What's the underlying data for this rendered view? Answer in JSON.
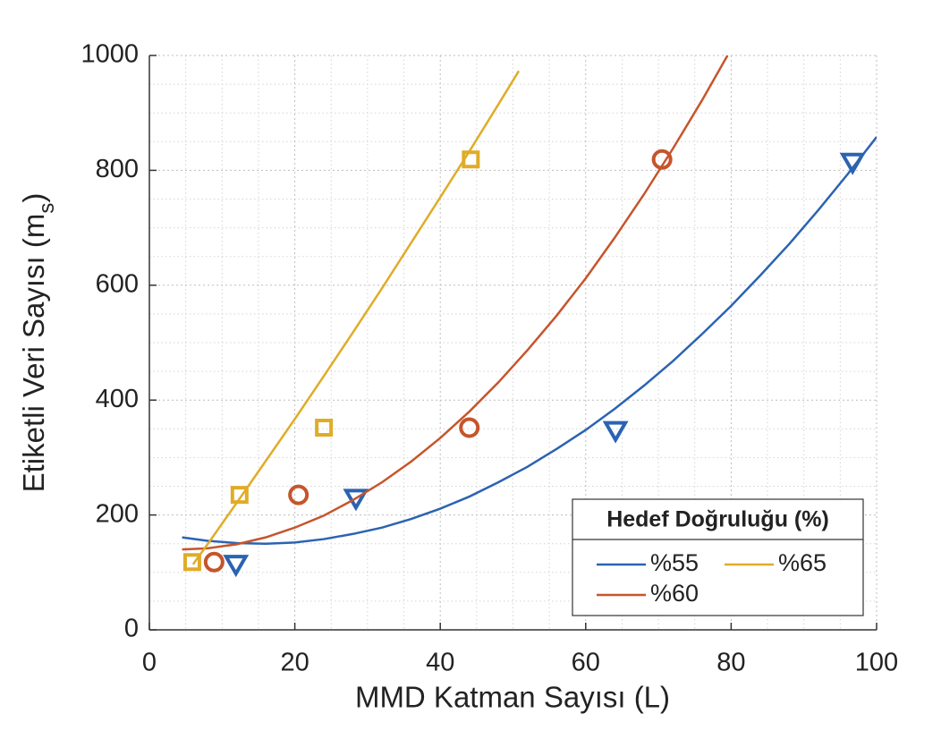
{
  "chart_data": {
    "type": "scatter",
    "x_label": "MMD Katman Sayısı (L)",
    "y_label": [
      "Etiketli Veri Sayısı (m",
      "s",
      ")"
    ],
    "xlim": [
      0,
      100
    ],
    "xticks": [
      0,
      20,
      40,
      60,
      80,
      100
    ],
    "ylim": [
      0,
      1000
    ],
    "yticks": [
      0,
      200,
      400,
      600,
      800,
      1000
    ],
    "grid": true,
    "minor_grid": true,
    "legend_title": "Hedef Doğruluğu (%)",
    "legend_position": "lower right",
    "series": [
      {
        "name": "%55",
        "color": "#2b63b2",
        "marker": "triangle-down",
        "points": {
          "x": [
            11.9,
            28.4,
            64.1,
            96.7
          ],
          "values": [
            115,
            230,
            348,
            815
          ]
        },
        "fit": {
          "x": [
            4.5,
            8,
            12,
            16,
            20,
            24,
            28,
            32,
            36,
            40,
            44,
            48,
            52,
            56,
            60,
            64,
            68,
            72,
            76,
            80,
            84,
            88,
            92,
            96,
            100
          ],
          "values": [
            161,
            155,
            151,
            150,
            152,
            158,
            167,
            178,
            193,
            211,
            232,
            257,
            284,
            315,
            348,
            385,
            425,
            468,
            515,
            564,
            617,
            672,
            731,
            793,
            858
          ]
        }
      },
      {
        "name": "%60",
        "color": "#c6552b",
        "marker": "circle",
        "points": {
          "x": [
            8.9,
            20.5,
            44.0,
            70.5
          ],
          "values": [
            118,
            235,
            352,
            819
          ]
        },
        "fit": {
          "x": [
            4.5,
            8,
            12,
            16,
            20,
            24,
            28,
            32,
            36,
            40,
            44,
            48,
            52,
            56,
            60,
            64,
            68,
            72,
            76,
            79.5
          ],
          "values": [
            140,
            142,
            149,
            161,
            178,
            199,
            226,
            257,
            293,
            334,
            380,
            431,
            487,
            547,
            612,
            683,
            758,
            838,
            922,
            1000
          ]
        }
      },
      {
        "name": "%65",
        "color": "#e0ac28",
        "marker": "square",
        "points": {
          "x": [
            5.9,
            12.4,
            24.0,
            44.2
          ],
          "values": [
            118,
            235,
            352,
            819
          ]
        },
        "fit": {
          "x": [
            6,
            8,
            12,
            16,
            20,
            24,
            28,
            32,
            36,
            40,
            44,
            48,
            50.8
          ],
          "values": [
            114,
            149,
            221,
            294,
            367,
            442,
            518,
            595,
            674,
            753,
            833,
            915,
            973
          ]
        }
      }
    ]
  }
}
